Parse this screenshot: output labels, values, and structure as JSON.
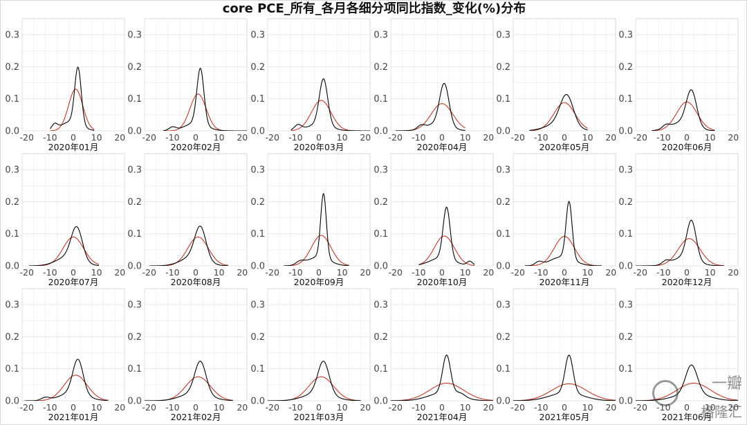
{
  "title": "core PCE_所有_各月各细分项同比指数_变化(%)分布",
  "watermark": {
    "line1": "一瓣",
    "line2": "格隆汇"
  },
  "colors": {
    "density": "#000000",
    "normal": "#c0392b",
    "grid": "#e6e6e6",
    "panel_border": "#d0d0d0"
  },
  "chart_data": [
    {
      "type": "line",
      "xlabel": "2020年01月",
      "xlim": [
        -22,
        22
      ],
      "ylim": [
        0,
        0.35
      ],
      "x_ticks": [
        -20,
        -10,
        0,
        10,
        20
      ],
      "y_ticks": [
        0.0,
        0.1,
        0.2,
        0.3
      ],
      "x_range": [
        -10,
        9
      ],
      "normal": {
        "mean": 1.0,
        "peak": 0.13
      },
      "density": [
        {
          "mean": 2.0,
          "sd": 1.4,
          "weight": 0.62
        },
        {
          "mean": -1.0,
          "sd": 4.2,
          "weight": 0.3
        },
        {
          "mean": -8.0,
          "sd": 1.2,
          "weight": 0.05
        }
      ]
    },
    {
      "type": "line",
      "xlabel": "2020年02月",
      "xlim": [
        -22,
        22
      ],
      "ylim": [
        0,
        0.35
      ],
      "x_ticks": [
        -20,
        -10,
        0,
        10,
        20
      ],
      "y_ticks": [
        0.0,
        0.1,
        0.2,
        0.3
      ],
      "x_range": [
        -14,
        22
      ],
      "normal": {
        "mean": 1.0,
        "peak": 0.115
      },
      "density": [
        {
          "mean": 2.0,
          "sd": 1.5,
          "weight": 0.65
        },
        {
          "mean": 0.0,
          "sd": 4.5,
          "weight": 0.28
        },
        {
          "mean": -10.0,
          "sd": 1.5,
          "weight": 0.04
        }
      ]
    },
    {
      "type": "line",
      "xlabel": "2020年03月",
      "xlim": [
        -22,
        22
      ],
      "ylim": [
        0,
        0.35
      ],
      "x_ticks": [
        -20,
        -10,
        0,
        10,
        20
      ],
      "y_ticks": [
        0.0,
        0.1,
        0.2,
        0.3
      ],
      "x_range": [
        -12,
        22
      ],
      "normal": {
        "mean": 1.0,
        "peak": 0.095
      },
      "density": [
        {
          "mean": 2.0,
          "sd": 1.8,
          "weight": 0.65
        },
        {
          "mean": 0.0,
          "sd": 5.0,
          "weight": 0.25
        },
        {
          "mean": -9.0,
          "sd": 1.5,
          "weight": 0.06
        }
      ]
    },
    {
      "type": "line",
      "xlabel": "2020年04月",
      "xlim": [
        -22,
        22
      ],
      "ylim": [
        0,
        0.35
      ],
      "x_ticks": [
        -20,
        -10,
        0,
        10,
        20
      ],
      "y_ticks": [
        0.0,
        0.1,
        0.2,
        0.3
      ],
      "x_range": [
        -20,
        10
      ],
      "normal": {
        "mean": 0.0,
        "peak": 0.085
      },
      "density": [
        {
          "mean": 1.0,
          "sd": 2.0,
          "weight": 0.65
        },
        {
          "mean": -2.0,
          "sd": 5.0,
          "weight": 0.28
        },
        {
          "mean": -9.0,
          "sd": 1.5,
          "weight": 0.04
        }
      ]
    },
    {
      "type": "line",
      "xlabel": "2020年05月",
      "xlim": [
        -22,
        22
      ],
      "ylim": [
        0,
        0.35
      ],
      "x_ticks": [
        -20,
        -10,
        0,
        10,
        20
      ],
      "y_ticks": [
        0.0,
        0.1,
        0.2,
        0.3
      ],
      "x_range": [
        -15,
        10
      ],
      "normal": {
        "mean": 0.0,
        "peak": 0.088
      },
      "density": [
        {
          "mean": 1.0,
          "sd": 2.8,
          "weight": 0.65
        },
        {
          "mean": -2.0,
          "sd": 5.5,
          "weight": 0.33
        }
      ]
    },
    {
      "type": "line",
      "xlabel": "2020年06月",
      "xlim": [
        -22,
        22
      ],
      "ylim": [
        0,
        0.35
      ],
      "x_ticks": [
        -20,
        -10,
        0,
        10,
        20
      ],
      "y_ticks": [
        0.0,
        0.1,
        0.2,
        0.3
      ],
      "x_range": [
        -15,
        12
      ],
      "normal": {
        "mean": 0.0,
        "peak": 0.09
      },
      "density": [
        {
          "mean": 2.0,
          "sd": 2.2,
          "weight": 0.6
        },
        {
          "mean": -2.0,
          "sd": 5.0,
          "weight": 0.33
        },
        {
          "mean": -9.0,
          "sd": 1.5,
          "weight": 0.04
        }
      ]
    },
    {
      "type": "line",
      "xlabel": "2020年07月",
      "xlim": [
        -22,
        22
      ],
      "ylim": [
        0,
        0.35
      ],
      "x_ticks": [
        -20,
        -10,
        0,
        10,
        20
      ],
      "y_ticks": [
        0.0,
        0.1,
        0.2,
        0.3
      ],
      "x_range": [
        -19,
        11
      ],
      "normal": {
        "mean": 0.0,
        "peak": 0.09
      },
      "density": [
        {
          "mean": 1.5,
          "sd": 2.4,
          "weight": 0.6
        },
        {
          "mean": -2.0,
          "sd": 5.0,
          "weight": 0.36
        }
      ]
    },
    {
      "type": "line",
      "xlabel": "2020年08月",
      "xlim": [
        -22,
        22
      ],
      "ylim": [
        0,
        0.35
      ],
      "x_ticks": [
        -20,
        -10,
        0,
        10,
        20
      ],
      "y_ticks": [
        0.0,
        0.1,
        0.2,
        0.3
      ],
      "x_range": [
        -20,
        14
      ],
      "normal": {
        "mean": 1.0,
        "peak": 0.09
      },
      "density": [
        {
          "mean": 2.0,
          "sd": 2.4,
          "weight": 0.6
        },
        {
          "mean": -1.0,
          "sd": 5.0,
          "weight": 0.36
        }
      ]
    },
    {
      "type": "line",
      "xlabel": "2020年09月",
      "xlim": [
        -22,
        22
      ],
      "ylim": [
        0,
        0.35
      ],
      "x_ticks": [
        -20,
        -10,
        0,
        10,
        20
      ],
      "y_ticks": [
        0.0,
        0.1,
        0.2,
        0.3
      ],
      "x_range": [
        -15,
        13
      ],
      "normal": {
        "mean": 1.0,
        "peak": 0.095
      },
      "density": [
        {
          "mean": 2.0,
          "sd": 1.2,
          "weight": 0.6
        },
        {
          "mean": 0.0,
          "sd": 4.5,
          "weight": 0.32
        },
        {
          "mean": -8.0,
          "sd": 1.8,
          "weight": 0.05
        }
      ]
    },
    {
      "type": "line",
      "xlabel": "2020年10月",
      "xlim": [
        -22,
        22
      ],
      "ylim": [
        0,
        0.35
      ],
      "x_ticks": [
        -20,
        -10,
        0,
        10,
        20
      ],
      "y_ticks": [
        0.0,
        0.1,
        0.2,
        0.3
      ],
      "x_range": [
        -10,
        14
      ],
      "normal": {
        "mean": 1.0,
        "peak": 0.093
      },
      "density": [
        {
          "mean": 2.0,
          "sd": 1.5,
          "weight": 0.6
        },
        {
          "mean": 0.0,
          "sd": 5.0,
          "weight": 0.32
        },
        {
          "mean": 12.0,
          "sd": 1.2,
          "weight": 0.04
        }
      ]
    },
    {
      "type": "line",
      "xlabel": "2020年11月",
      "xlim": [
        -22,
        22
      ],
      "ylim": [
        0,
        0.35
      ],
      "x_ticks": [
        -20,
        -10,
        0,
        10,
        20
      ],
      "y_ticks": [
        0.0,
        0.1,
        0.2,
        0.3
      ],
      "x_range": [
        -17,
        16
      ],
      "normal": {
        "mean": 0.0,
        "peak": 0.092
      },
      "density": [
        {
          "mean": 2.0,
          "sd": 1.3,
          "weight": 0.58
        },
        {
          "mean": -1.0,
          "sd": 5.0,
          "weight": 0.35
        },
        {
          "mean": -11.0,
          "sd": 1.5,
          "weight": 0.04
        }
      ]
    },
    {
      "type": "line",
      "xlabel": "2020年12月",
      "xlim": [
        -22,
        22
      ],
      "ylim": [
        0,
        0.35
      ],
      "x_ticks": [
        -20,
        -10,
        0,
        10,
        20
      ],
      "y_ticks": [
        0.0,
        0.1,
        0.2,
        0.3
      ],
      "x_range": [
        -22,
        16
      ],
      "normal": {
        "mean": 1.0,
        "peak": 0.085
      },
      "density": [
        {
          "mean": 2.0,
          "sd": 2.0,
          "weight": 0.6
        },
        {
          "mean": -1.0,
          "sd": 5.0,
          "weight": 0.34
        },
        {
          "mean": -9.0,
          "sd": 1.5,
          "weight": 0.04
        }
      ]
    },
    {
      "type": "line",
      "xlabel": "2021年01月",
      "xlim": [
        -22,
        22
      ],
      "ylim": [
        0,
        0.35
      ],
      "x_ticks": [
        -20,
        -10,
        0,
        10,
        20
      ],
      "y_ticks": [
        0.0,
        0.1,
        0.2,
        0.3
      ],
      "x_range": [
        -21,
        15
      ],
      "normal": {
        "mean": 1.0,
        "peak": 0.08
      },
      "density": [
        {
          "mean": 2.0,
          "sd": 2.2,
          "weight": 0.58
        },
        {
          "mean": 0.0,
          "sd": 5.5,
          "weight": 0.36
        },
        {
          "mean": -12.0,
          "sd": 1.8,
          "weight": 0.04
        }
      ]
    },
    {
      "type": "line",
      "xlabel": "2021年02月",
      "xlim": [
        -22,
        22
      ],
      "ylim": [
        0,
        0.35
      ],
      "x_ticks": [
        -20,
        -10,
        0,
        10,
        20
      ],
      "y_ticks": [
        0.0,
        0.1,
        0.2,
        0.3
      ],
      "x_range": [
        -22,
        16
      ],
      "normal": {
        "mean": 1.0,
        "peak": 0.075
      },
      "density": [
        {
          "mean": 2.0,
          "sd": 2.4,
          "weight": 0.6
        },
        {
          "mean": 0.0,
          "sd": 6.0,
          "weight": 0.38
        }
      ]
    },
    {
      "type": "line",
      "xlabel": "2021年03月",
      "xlim": [
        -22,
        22
      ],
      "ylim": [
        0,
        0.35
      ],
      "x_ticks": [
        -20,
        -10,
        0,
        10,
        20
      ],
      "y_ticks": [
        0.0,
        0.1,
        0.2,
        0.3
      ],
      "x_range": [
        -22,
        18
      ],
      "normal": {
        "mean": 1.0,
        "peak": 0.075
      },
      "density": [
        {
          "mean": 2.0,
          "sd": 2.4,
          "weight": 0.6
        },
        {
          "mean": 0.0,
          "sd": 6.0,
          "weight": 0.38
        }
      ]
    },
    {
      "type": "line",
      "xlabel": "2021年04月",
      "xlim": [
        -22,
        22
      ],
      "ylim": [
        0,
        0.35
      ],
      "x_ticks": [
        -20,
        -10,
        0,
        10,
        20
      ],
      "y_ticks": [
        0.0,
        0.1,
        0.2,
        0.3
      ],
      "x_range": [
        -22,
        22
      ],
      "normal": {
        "mean": 2.0,
        "peak": 0.055
      },
      "density": [
        {
          "mean": 2.0,
          "sd": 1.7,
          "weight": 0.5
        },
        {
          "mean": 1.0,
          "sd": 6.5,
          "weight": 0.42
        },
        {
          "mean": 8.0,
          "sd": 2.0,
          "weight": 0.05
        }
      ]
    },
    {
      "type": "line",
      "xlabel": "2021年05月",
      "xlim": [
        -22,
        22
      ],
      "ylim": [
        0,
        0.35
      ],
      "x_ticks": [
        -20,
        -10,
        0,
        10,
        20
      ],
      "y_ticks": [
        0.0,
        0.1,
        0.2,
        0.3
      ],
      "x_range": [
        -22,
        22
      ],
      "normal": {
        "mean": 2.0,
        "peak": 0.053
      },
      "density": [
        {
          "mean": 2.0,
          "sd": 1.7,
          "weight": 0.5
        },
        {
          "mean": 1.0,
          "sd": 7.0,
          "weight": 0.45
        }
      ]
    },
    {
      "type": "line",
      "xlabel": "2021年06月",
      "xlim": [
        -22,
        22
      ],
      "ylim": [
        0,
        0.35
      ],
      "x_ticks": [
        -20,
        -10,
        0,
        10,
        20
      ],
      "y_ticks": [
        0.0,
        0.1,
        0.2,
        0.3
      ],
      "x_range": [
        -22,
        22
      ],
      "normal": {
        "mean": 3.0,
        "peak": 0.055
      },
      "density": [
        {
          "mean": 2.0,
          "sd": 2.5,
          "weight": 0.55
        },
        {
          "mean": 2.0,
          "sd": 7.0,
          "weight": 0.42
        }
      ]
    }
  ]
}
